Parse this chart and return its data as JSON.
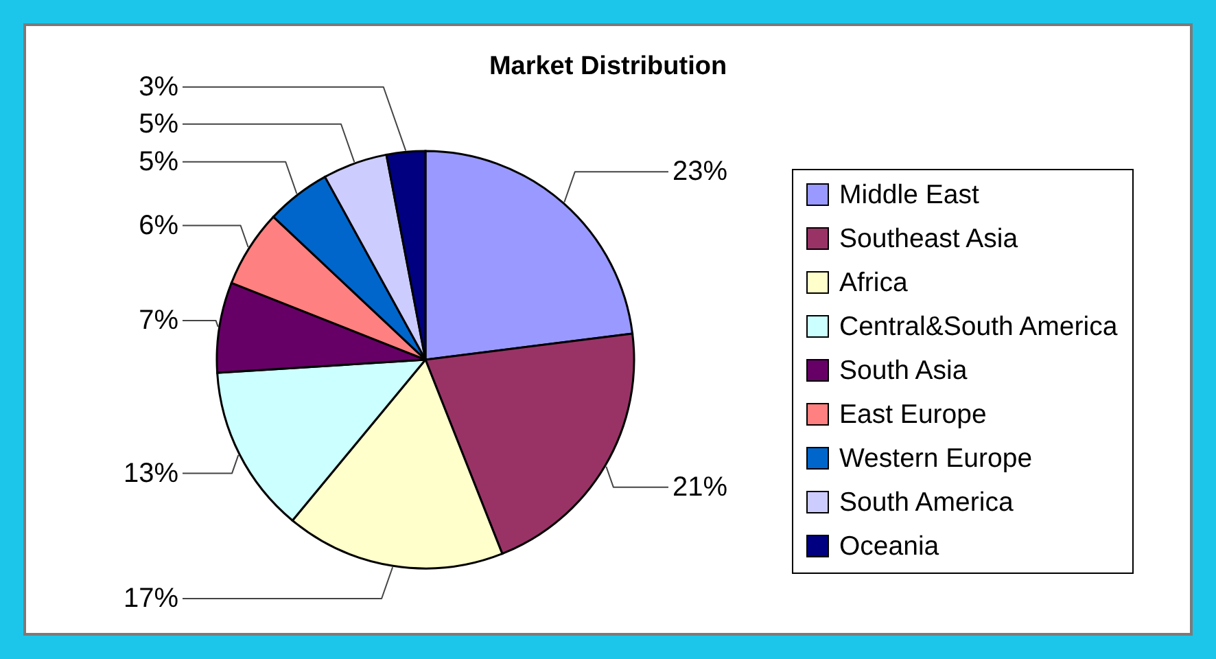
{
  "chart_data": {
    "type": "pie",
    "title": "Market Distribution",
    "categories": [
      "Middle East",
      "Southeast Asia",
      "Africa",
      "Central&South America",
      "South Asia",
      "East Europe",
      "Western Europe",
      "South America",
      "Oceania"
    ],
    "values": [
      23,
      21,
      17,
      13,
      7,
      6,
      5,
      5,
      3
    ],
    "colors": [
      "#9999ff",
      "#993366",
      "#ffffcc",
      "#ccffff",
      "#660066",
      "#ff8080",
      "#0066cc",
      "#ccccff",
      "#000080"
    ],
    "value_labels": [
      "23%",
      "21%",
      "17%",
      "13%",
      "7%",
      "6%",
      "5%",
      "5%",
      "3%"
    ],
    "legend": "right"
  }
}
